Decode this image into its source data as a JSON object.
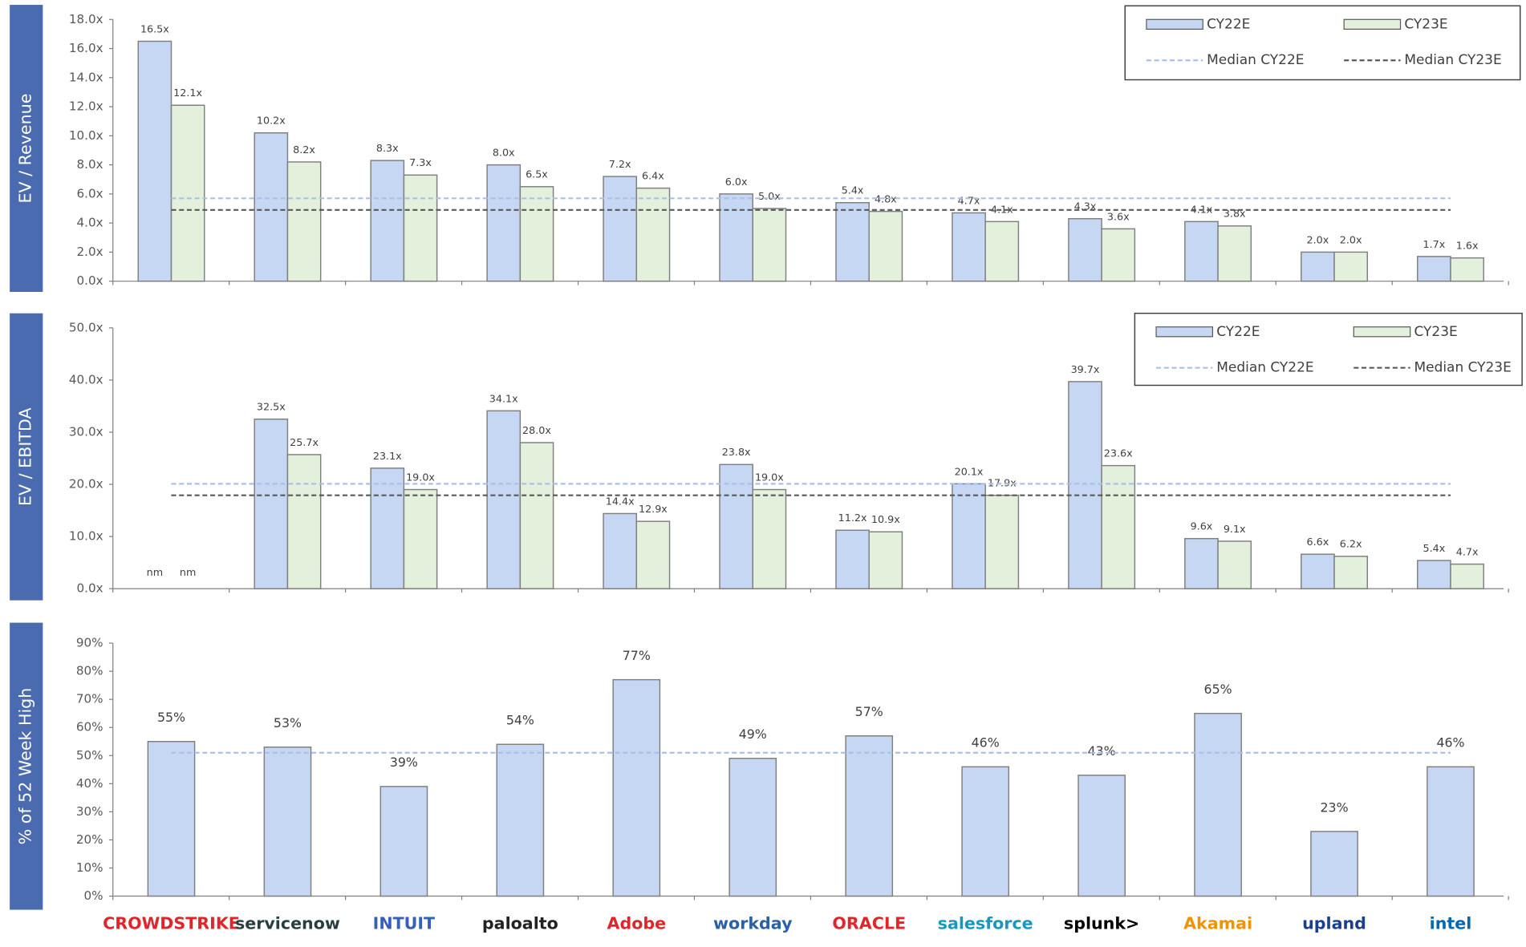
{
  "chart_data": [
    {
      "type": "bar",
      "ylabel": "EV / Revenue",
      "ylim": [
        0,
        18
      ],
      "yticks": [
        {
          "value": 0,
          "label": "0.0x"
        },
        {
          "value": 2,
          "label": "2.0x"
        },
        {
          "value": 4,
          "label": "4.0x"
        },
        {
          "value": 6,
          "label": "6.0x"
        },
        {
          "value": 8,
          "label": "8.0x"
        },
        {
          "value": 10,
          "label": "10.0x"
        },
        {
          "value": 12,
          "label": "12.0x"
        },
        {
          "value": 14,
          "label": "14.0x"
        },
        {
          "value": 16,
          "label": "16.0x"
        },
        {
          "value": 18,
          "label": "18.0x"
        }
      ],
      "series": [
        {
          "name": "CY22E",
          "color": "#c6d7f3",
          "values": [
            16.5,
            10.2,
            8.3,
            8.0,
            7.2,
            6.0,
            5.4,
            4.7,
            4.3,
            4.1,
            2.0,
            1.7
          ],
          "value_labels": [
            "16.5x",
            "10.2x",
            "8.3x",
            "8.0x",
            "7.2x",
            "6.0x",
            "5.4x",
            "4.7x",
            "4.3x",
            "4.1x",
            "2.0x",
            "1.7x"
          ]
        },
        {
          "name": "CY23E",
          "color": "#e3f0dc",
          "values": [
            12.1,
            8.2,
            7.3,
            6.5,
            6.4,
            5.0,
            4.8,
            4.1,
            3.6,
            3.8,
            2.0,
            1.6
          ],
          "value_labels": [
            "12.1x",
            "8.2x",
            "7.3x",
            "6.5x",
            "6.4x",
            "5.0x",
            "4.8x",
            "4.1x",
            "3.6x",
            "3.8x",
            "2.0x",
            "1.6x"
          ]
        }
      ],
      "reference_lines": [
        {
          "name": "Median CY22E",
          "value": 5.7,
          "color": "#a9c1e8"
        },
        {
          "name": "Median CY23E",
          "value": 4.9,
          "color": "#595959"
        }
      ],
      "legend": "upper right"
    },
    {
      "type": "bar",
      "ylabel": "EV / EBITDA",
      "ylim": [
        0,
        50
      ],
      "yticks": [
        {
          "value": 0,
          "label": "0.0x"
        },
        {
          "value": 10,
          "label": "10.0x"
        },
        {
          "value": 20,
          "label": "20.0x"
        },
        {
          "value": 30,
          "label": "30.0x"
        },
        {
          "value": 40,
          "label": "40.0x"
        },
        {
          "value": 50,
          "label": "50.0x"
        }
      ],
      "series": [
        {
          "name": "CY22E",
          "color": "#c6d7f3",
          "values": [
            null,
            32.5,
            23.1,
            34.1,
            14.4,
            23.8,
            11.2,
            20.1,
            39.7,
            9.6,
            6.6,
            5.4
          ],
          "value_labels": [
            "nm",
            "32.5x",
            "23.1x",
            "34.1x",
            "14.4x",
            "23.8x",
            "11.2x",
            "20.1x",
            "39.7x",
            "9.6x",
            "6.6x",
            "5.4x"
          ]
        },
        {
          "name": "CY23E",
          "color": "#e3f0dc",
          "values": [
            null,
            25.7,
            19.0,
            28.0,
            12.9,
            19.0,
            10.9,
            17.9,
            23.6,
            9.1,
            6.2,
            4.7
          ],
          "value_labels": [
            "nm",
            "25.7x",
            "19.0x",
            "28.0x",
            "12.9x",
            "19.0x",
            "10.9x",
            "17.9x",
            "23.6x",
            "9.1x",
            "6.2x",
            "4.7x"
          ]
        }
      ],
      "reference_lines": [
        {
          "name": "Median CY22E",
          "value": 20.1,
          "color": "#a9c1e8"
        },
        {
          "name": "Median CY23E",
          "value": 17.9,
          "color": "#595959"
        }
      ],
      "legend": "upper right"
    },
    {
      "type": "bar",
      "ylabel": "% of 52 Week High",
      "ylim": [
        0,
        90
      ],
      "yticks": [
        {
          "value": 0,
          "label": "0%"
        },
        {
          "value": 10,
          "label": "10%"
        },
        {
          "value": 20,
          "label": "20%"
        },
        {
          "value": 30,
          "label": "30%"
        },
        {
          "value": 40,
          "label": "40%"
        },
        {
          "value": 50,
          "label": "50%"
        },
        {
          "value": 60,
          "label": "60%"
        },
        {
          "value": 70,
          "label": "70%"
        },
        {
          "value": 80,
          "label": "80%"
        },
        {
          "value": 90,
          "label": "90%"
        }
      ],
      "categories": [
        "CROWDSTRIKE",
        "servicenow",
        "INTUIT",
        "paloalto",
        "Adobe",
        "workday",
        "ORACLE",
        "salesforce",
        "splunk>",
        "Akamai",
        "upland",
        "intel"
      ],
      "category_colors": [
        "#e0262b",
        "#293e40",
        "#365ebf",
        "#222222",
        "#e0262b",
        "#2b5fa8",
        "#e0262b",
        "#1798c1",
        "#000000",
        "#f39200",
        "#1b3f8f",
        "#0068b5"
      ],
      "color": "#c6d7f3",
      "values": [
        55,
        53,
        39,
        54,
        77,
        49,
        57,
        46,
        43,
        65,
        23,
        46
      ],
      "value_labels": [
        "55%",
        "53%",
        "39%",
        "54%",
        "77%",
        "49%",
        "57%",
        "46%",
        "43%",
        "65%",
        "23%",
        "46%"
      ],
      "reference_lines": [
        {
          "value": 51,
          "color": "#a9c1e8"
        }
      ]
    }
  ]
}
